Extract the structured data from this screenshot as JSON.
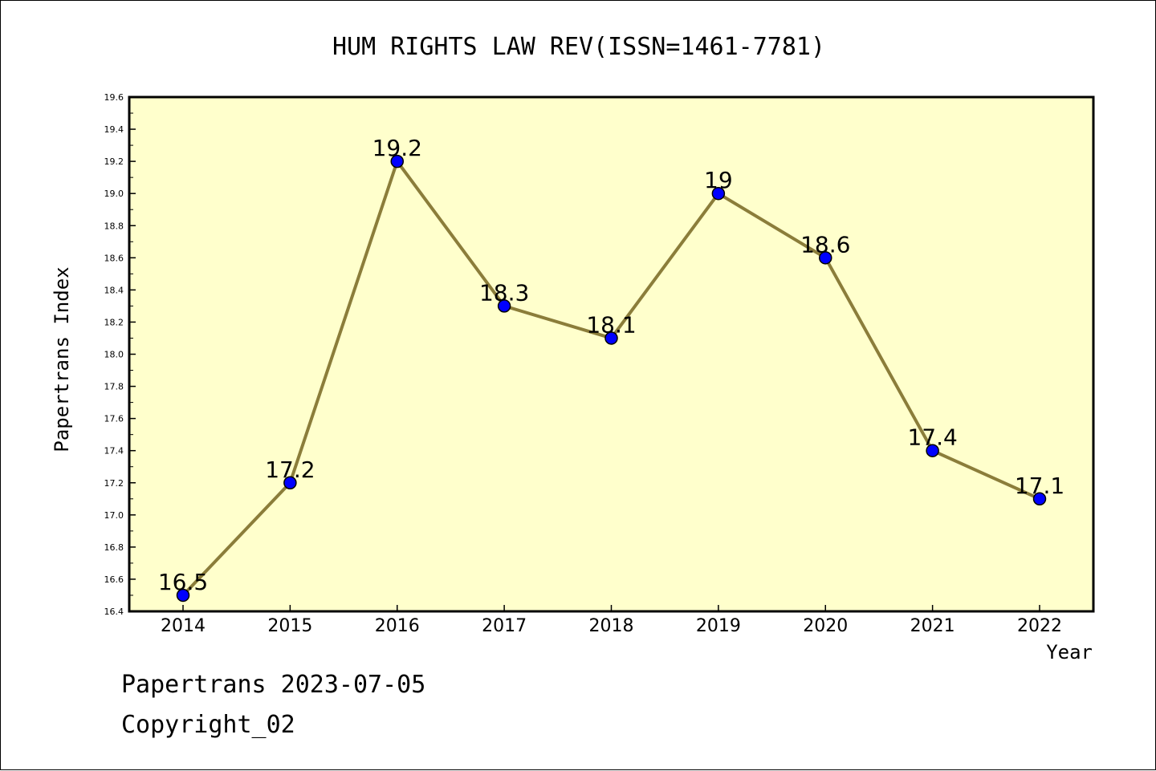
{
  "chart_data": {
    "type": "line",
    "title": "HUM RIGHTS LAW REV(ISSN=1461-7781)",
    "xlabel": "Year",
    "ylabel": "Papertrans Index",
    "x": [
      "2014",
      "2015",
      "2016",
      "2017",
      "2018",
      "2019",
      "2020",
      "2021",
      "2022"
    ],
    "values": [
      16.5,
      17.2,
      19.2,
      18.3,
      18.1,
      19,
      18.6,
      17.4,
      17.1
    ],
    "data_labels": [
      "16.5",
      "17.2",
      "19.2",
      "18.3",
      "18.1",
      "19",
      "18.6",
      "17.4",
      "17.1"
    ],
    "ylim": [
      16.4,
      19.6
    ],
    "yticks": [
      "16.4",
      "16.6",
      "16.8",
      "17.0",
      "17.2",
      "17.4",
      "17.6",
      "17.8",
      "18.0",
      "18.2",
      "18.4",
      "18.6",
      "18.8",
      "19.0",
      "19.2",
      "19.4",
      "19.6"
    ],
    "grid": false,
    "colors": {
      "plot_background": "#ffffcc",
      "line": "#8b7d3a",
      "marker": "#0000ff"
    }
  },
  "footer": {
    "date_line": "Papertrans 2023-07-05",
    "copyright_line": "Copyright_02"
  }
}
